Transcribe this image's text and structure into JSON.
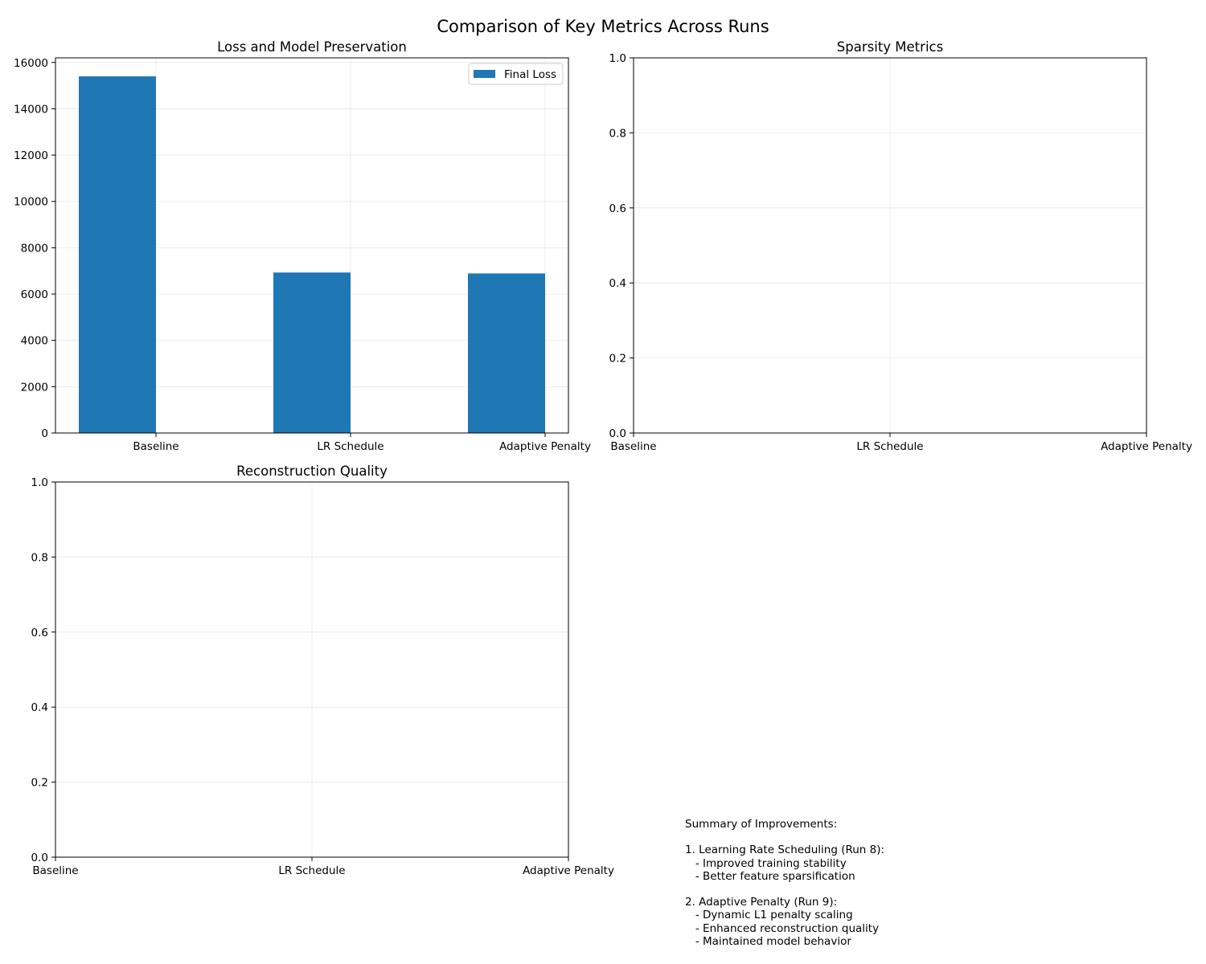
{
  "figure": {
    "suptitle": "Comparison of Key Metrics Across Runs"
  },
  "colors": {
    "bar": "#1f77b4",
    "grid": "#b0b0b0"
  },
  "chart_data": [
    {
      "id": "loss",
      "type": "bar",
      "title": "Loss and Model Preservation",
      "categories": [
        "Baseline",
        "LR Schedule",
        "Adaptive Penalty"
      ],
      "series": [
        {
          "name": "Final Loss",
          "values": [
            15400,
            6930,
            6890
          ]
        }
      ],
      "ylim": [
        0,
        16200
      ],
      "yticks": [
        0,
        2000,
        4000,
        6000,
        8000,
        10000,
        12000,
        14000,
        16000
      ],
      "xlabel": "",
      "ylabel": "",
      "grid": true,
      "legend": "top-right"
    },
    {
      "id": "sparsity",
      "type": "bar",
      "title": "Sparsity Metrics",
      "categories": [
        "Baseline",
        "LR Schedule",
        "Adaptive Penalty"
      ],
      "series": [],
      "ylim": [
        0,
        1
      ],
      "yticks": [
        "0.0",
        "0.2",
        "0.4",
        "0.6",
        "0.8",
        "1.0"
      ],
      "xlabel": "",
      "ylabel": "",
      "grid": true
    },
    {
      "id": "reconstruction",
      "type": "bar",
      "title": "Reconstruction Quality",
      "categories": [
        "Baseline",
        "LR Schedule",
        "Adaptive Penalty"
      ],
      "series": [],
      "ylim": [
        0,
        1
      ],
      "yticks": [
        "0.0",
        "0.2",
        "0.4",
        "0.6",
        "0.8",
        "1.0"
      ],
      "xlabel": "",
      "ylabel": "",
      "grid": true
    }
  ],
  "summary": {
    "text": "Summary of Improvements:\n\n1. Learning Rate Scheduling (Run 8):\n   - Improved training stability\n   - Better feature sparsification\n\n2. Adaptive Penalty (Run 9):\n   - Dynamic L1 penalty scaling\n   - Enhanced reconstruction quality\n   - Maintained model behavior"
  }
}
